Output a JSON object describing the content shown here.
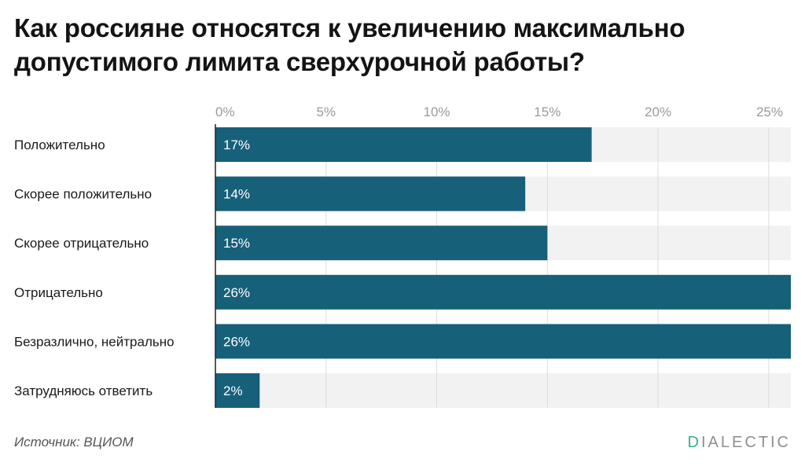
{
  "title": "Как россияне относятся к увеличению максимально допустимого лимита сверхурочной работы?",
  "source": "Источник: ВЦИОМ",
  "brand": {
    "first_letter": "D",
    "rest": "IALECTIC",
    "accent_color": "#35b18a"
  },
  "chart_data": {
    "type": "bar",
    "orientation": "horizontal",
    "categories": [
      "Положительно",
      "Скорее положительно",
      "Скорее отрицательно",
      "Отрицательно",
      "Безразлично, нейтрально",
      "Затрудняюсь ответить"
    ],
    "values": [
      17,
      14,
      15,
      26,
      26,
      2
    ],
    "value_labels": [
      "17%",
      "14%",
      "15%",
      "26%",
      "26%",
      "2%"
    ],
    "xticks": [
      0,
      5,
      10,
      15,
      20,
      25
    ],
    "xtick_labels": [
      "0%",
      "5%",
      "10%",
      "15%",
      "20%",
      "25%"
    ],
    "xlim": [
      0,
      26
    ],
    "grid": true,
    "bar_color": "#17607a",
    "track_color": "#f2f2f2"
  }
}
